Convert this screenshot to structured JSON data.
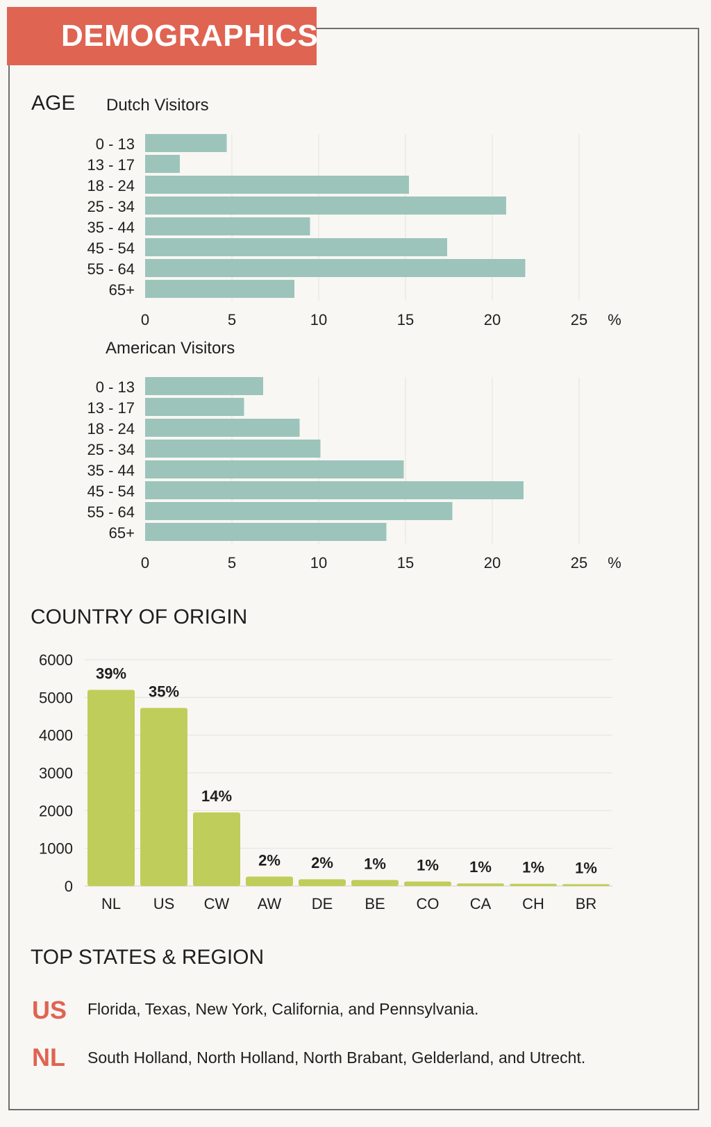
{
  "banner": {
    "title": "DEMOGRAPHICS"
  },
  "age": {
    "title": "AGE"
  },
  "country": {
    "title": "COUNTRY OF ORIGIN"
  },
  "states": {
    "title": "TOP STATES & REGION",
    "rows": [
      {
        "code": "US",
        "text": "Florida, Texas, New York, California, and Pennsylvania."
      },
      {
        "code": "NL",
        "text": "South Holland, North Holland, North Brabant, Gelderland, and Utrecht."
      }
    ]
  },
  "colors": {
    "accent": "#df6452",
    "age_bar": "#9cc4bb",
    "country_bar": "#bfcd5a"
  },
  "chart_data": [
    {
      "type": "bar",
      "orientation": "horizontal",
      "title": "Dutch Visitors",
      "categories": [
        "0 - 13",
        "13 - 17",
        "18 - 24",
        "25 - 34",
        "35 - 44",
        "45 - 54",
        "55 - 64",
        "65+"
      ],
      "values": [
        4.7,
        2.0,
        15.2,
        20.8,
        9.5,
        17.4,
        21.9,
        8.6
      ],
      "xticks": [
        "0",
        "5",
        "10",
        "15",
        "20",
        "25"
      ],
      "unit": "%",
      "xlim": [
        0,
        25
      ],
      "grid": true
    },
    {
      "type": "bar",
      "orientation": "horizontal",
      "title": "American Visitors",
      "categories": [
        "0 - 13",
        "13 - 17",
        "18 - 24",
        "25 - 34",
        "35 - 44",
        "45 - 54",
        "55 - 64",
        "65+"
      ],
      "values": [
        6.8,
        5.7,
        8.9,
        10.1,
        14.9,
        21.8,
        17.7,
        13.9
      ],
      "xticks": [
        "0",
        "5",
        "10",
        "15",
        "20",
        "25"
      ],
      "unit": "%",
      "xlim": [
        0,
        25
      ],
      "grid": true
    },
    {
      "type": "bar",
      "categories": [
        "NL",
        "US",
        "CW",
        "AW",
        "DE",
        "BE",
        "CO",
        "CA",
        "CH",
        "BR"
      ],
      "values": [
        5200,
        4720,
        1950,
        250,
        180,
        160,
        120,
        70,
        60,
        50
      ],
      "labels": [
        "39%",
        "35%",
        "14%",
        "2%",
        "2%",
        "1%",
        "1%",
        "1%",
        "1%",
        "1%"
      ],
      "yticks": [
        "0",
        "1000",
        "2000",
        "3000",
        "4000",
        "5000",
        "6000"
      ],
      "ylim": [
        0,
        6000
      ],
      "grid": true
    }
  ]
}
